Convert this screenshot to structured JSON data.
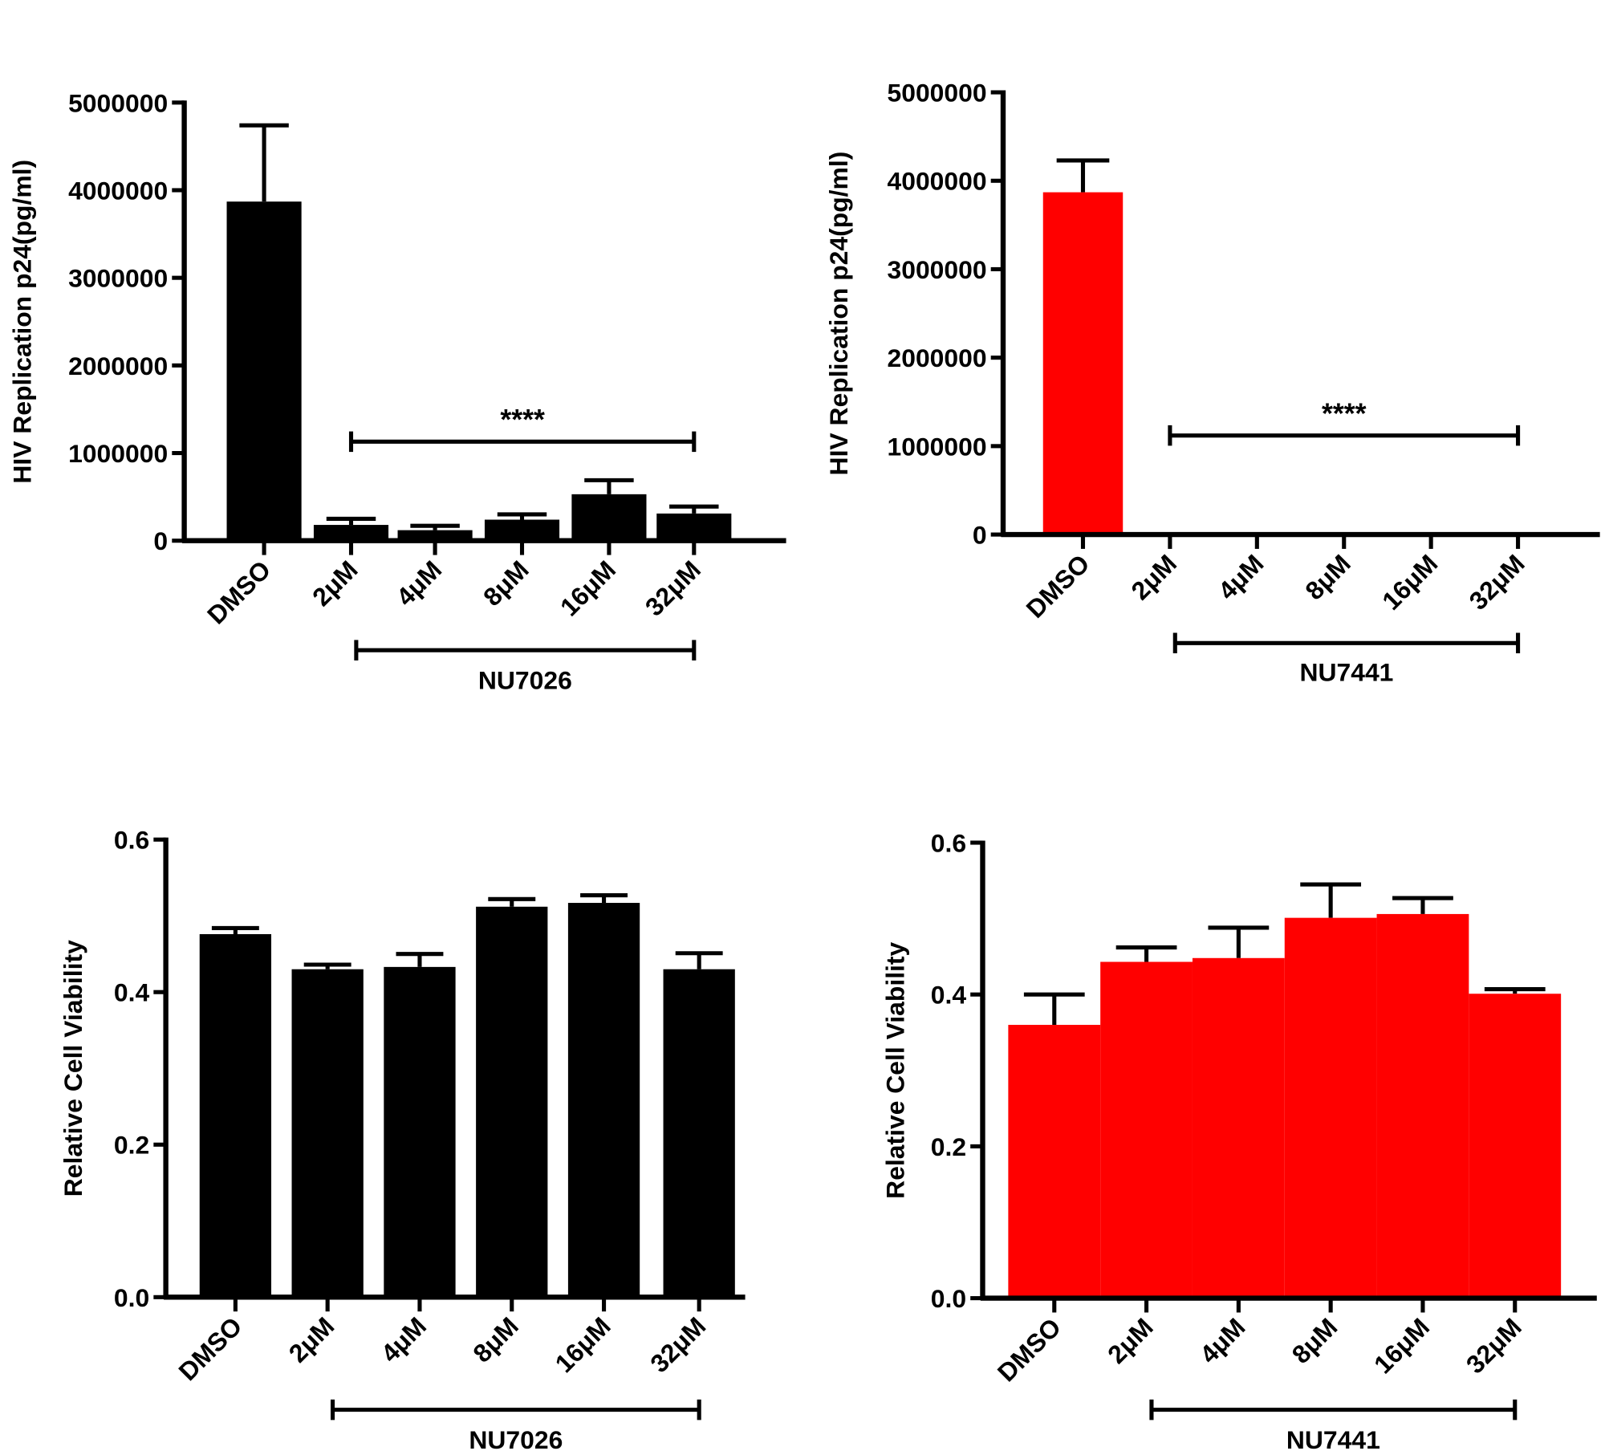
{
  "chart_data": [
    {
      "panel": "A",
      "type": "bar",
      "categories": [
        "DMSO",
        "2μM",
        "4μM",
        "8μM",
        "16μM",
        "32μM"
      ],
      "values": [
        3870000,
        180000,
        120000,
        240000,
        530000,
        310000
      ],
      "error_upper": [
        4740000,
        250000,
        170000,
        300000,
        690000,
        390000
      ],
      "ylabel": "HIV Replication p24(pg/ml)",
      "ylim": [
        0,
        5000000
      ],
      "yticks": [
        "0",
        "1000000",
        "2000000",
        "3000000",
        "4000000",
        "5000000"
      ],
      "bar_color": "#000000",
      "significance": {
        "label": "****",
        "from": "2μM",
        "to": "32μM",
        "y": 1130000
      },
      "group_label": "NU7026",
      "grid": false
    },
    {
      "panel": "B",
      "type": "bar",
      "categories": [
        "DMSO",
        "2μM",
        "4μM",
        "8μM",
        "16μM",
        "32μM"
      ],
      "values": [
        3870000,
        0,
        0,
        0,
        0,
        0
      ],
      "error_upper": [
        4230000,
        0,
        0,
        0,
        0,
        0
      ],
      "ylabel": "HIV Replication p24(pg/ml)",
      "ylim": [
        0,
        5000000
      ],
      "yticks": [
        "0",
        "1000000",
        "2000000",
        "3000000",
        "4000000",
        "5000000"
      ],
      "bar_color": "#ff0000",
      "significance": {
        "label": "****",
        "from": "2μM",
        "to": "32μM",
        "y": 1120000
      },
      "group_label": "NU7441",
      "grid": false
    },
    {
      "panel": "C",
      "type": "bar",
      "categories": [
        "DMSO",
        "2μM",
        "4μM",
        "8μM",
        "16μM",
        "32μM"
      ],
      "values": [
        0.476,
        0.43,
        0.433,
        0.512,
        0.517,
        0.43
      ],
      "error_upper": [
        0.484,
        0.436,
        0.45,
        0.522,
        0.527,
        0.451
      ],
      "ylabel": "Relative Cell Viability",
      "ylim": [
        0,
        0.6
      ],
      "yticks": [
        "0.0",
        "0.2",
        "0.4",
        "0.6"
      ],
      "bar_color": "#000000",
      "group_label": "NU7026",
      "grid": false
    },
    {
      "panel": "D",
      "type": "bar",
      "categories": [
        "DMSO",
        "2μM",
        "4μM",
        "8μM",
        "16μM",
        "32μM"
      ],
      "values": [
        0.36,
        0.443,
        0.448,
        0.501,
        0.506,
        0.401
      ],
      "error_upper": [
        0.4,
        0.462,
        0.488,
        0.545,
        0.527,
        0.407
      ],
      "ylabel": "Relative Cell Viability",
      "ylim": [
        0,
        0.6
      ],
      "yticks": [
        "0.0",
        "0.2",
        "0.4",
        "0.6"
      ],
      "bar_color": "#ff0000",
      "group_label": "NU7441",
      "grid": false
    }
  ]
}
